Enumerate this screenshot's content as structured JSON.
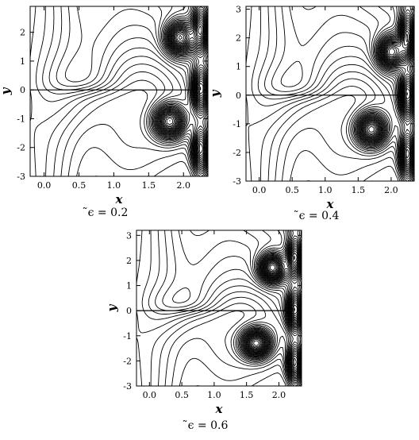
{
  "figure": {
    "panel_a": {
      "caption": "̃ϵ = 0.2"
    },
    "panel_b": {
      "caption": "̃ϵ = 0.4"
    },
    "panel_c": {
      "caption": "̃ϵ = 0.6"
    }
  },
  "chart_data": [
    {
      "type": "contour",
      "xlabel": "x",
      "ylabel": "y",
      "xlim": [
        -0.2,
        2.35
      ],
      "ylim": [
        -3,
        2.9
      ],
      "xticks": [
        "0.0",
        "0.5",
        "1.0",
        "1.5",
        "2.0"
      ],
      "xtick_values": [
        0.0,
        0.5,
        1.0,
        1.5,
        2.0
      ],
      "yticks": [
        "-3",
        "-2",
        "-1",
        "0",
        "1",
        "2"
      ],
      "ytick_values": [
        -3,
        -2,
        -1,
        0,
        1,
        2
      ],
      "parameter": "0.2",
      "caption": "̃ϵ = 0.2",
      "peak_centers": [
        {
          "x": 1.8,
          "y": -1.1
        },
        {
          "x": 1.95,
          "y": 1.8
        }
      ]
    },
    {
      "type": "contour",
      "xlabel": "x",
      "ylabel": "y",
      "xlim": [
        -0.2,
        2.35
      ],
      "ylim": [
        -3,
        3.1
      ],
      "xticks": [
        "0.0",
        "0.5",
        "1.0",
        "1.5",
        "2.0"
      ],
      "xtick_values": [
        0.0,
        0.5,
        1.0,
        1.5,
        2.0
      ],
      "yticks": [
        "-3",
        "-2",
        "-1",
        "0",
        "1",
        "2",
        "3"
      ],
      "ytick_values": [
        -3,
        -2,
        -1,
        0,
        1,
        2,
        3
      ],
      "parameter": "0.4",
      "caption": "̃ϵ = 0.4",
      "peak_centers": [
        {
          "x": 1.7,
          "y": -1.2
        },
        {
          "x": 2.0,
          "y": 1.5
        }
      ]
    },
    {
      "type": "contour",
      "xlabel": "x",
      "ylabel": "y",
      "xlim": [
        -0.2,
        2.35
      ],
      "ylim": [
        -3,
        3.2
      ],
      "xticks": [
        "0.0",
        "0.5",
        "1.0",
        "1.5",
        "2.0"
      ],
      "xtick_values": [
        0.0,
        0.5,
        1.0,
        1.5,
        2.0
      ],
      "yticks": [
        "-3",
        "-2",
        "-1",
        "0",
        "1",
        "2",
        "3"
      ],
      "ytick_values": [
        -3,
        -2,
        -1,
        0,
        1,
        2,
        3
      ],
      "parameter": "0.6",
      "caption": "̃ϵ = 0.6",
      "peak_centers": [
        {
          "x": 1.65,
          "y": -1.3
        },
        {
          "x": 1.9,
          "y": 1.7
        }
      ]
    }
  ]
}
